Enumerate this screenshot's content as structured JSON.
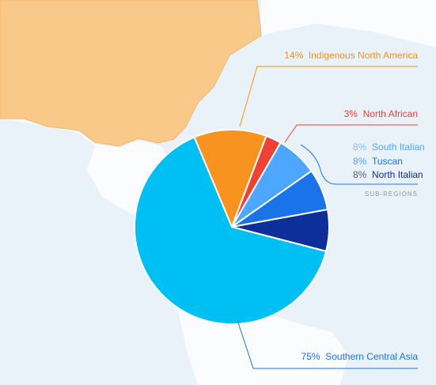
{
  "chart_data": {
    "type": "pie",
    "categories": [
      "Indigenous North America",
      "North African",
      "South Italian",
      "Tuscan",
      "North Italian",
      "Southern Central Asia"
    ],
    "values": [
      14,
      3,
      8,
      8,
      8,
      75
    ],
    "value_labels": [
      "14%",
      "3%",
      "8%",
      "8%",
      "8%",
      "75%"
    ],
    "colors": [
      "#f7931e",
      "#ef4136",
      "#4da6ff",
      "#1a73e8",
      "#0d2f99",
      "#00bff3"
    ],
    "annotations": [
      "SUB-REGIONS"
    ]
  }
}
